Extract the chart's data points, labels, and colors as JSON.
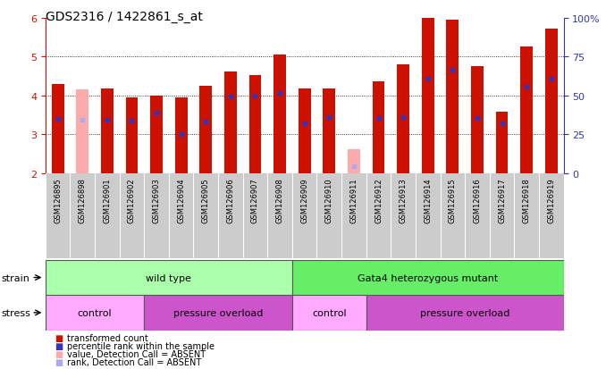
{
  "title": "GDS2316 / 1422861_s_at",
  "samples": [
    "GSM126895",
    "GSM126898",
    "GSM126901",
    "GSM126902",
    "GSM126903",
    "GSM126904",
    "GSM126905",
    "GSM126906",
    "GSM126907",
    "GSM126908",
    "GSM126909",
    "GSM126910",
    "GSM126911",
    "GSM126912",
    "GSM126913",
    "GSM126914",
    "GSM126915",
    "GSM126916",
    "GSM126917",
    "GSM126918",
    "GSM126919"
  ],
  "values": [
    4.3,
    4.15,
    4.18,
    3.95,
    4.0,
    3.95,
    4.25,
    4.62,
    4.52,
    5.05,
    4.18,
    4.18,
    2.6,
    4.35,
    4.8,
    6.0,
    5.95,
    4.75,
    3.58,
    5.25,
    5.72
  ],
  "pct_ranks": [
    3.4,
    3.38,
    3.38,
    3.35,
    3.55,
    3.0,
    3.32,
    3.98,
    4.0,
    4.05,
    3.28,
    3.45,
    2.18,
    3.42,
    3.45,
    4.42,
    4.65,
    3.42,
    3.28,
    4.22,
    4.42
  ],
  "absent": [
    false,
    true,
    false,
    false,
    false,
    false,
    false,
    false,
    false,
    false,
    false,
    false,
    true,
    false,
    false,
    false,
    false,
    false,
    false,
    false,
    false
  ],
  "base": 2.0,
  "ylim_left": [
    2,
    6
  ],
  "yticks_left": [
    2,
    3,
    4,
    5,
    6
  ],
  "ylim_right": [
    0,
    100
  ],
  "yticks_right": [
    0,
    25,
    50,
    75,
    100
  ],
  "grid_values": [
    3,
    4,
    5
  ],
  "bar_color": "#cc1100",
  "absent_bar_color": "#ffaaaa",
  "blue_color": "#3333bb",
  "absent_blue_color": "#aaaaee",
  "bar_width": 0.5,
  "strain_groups": [
    {
      "label": "wild type",
      "start": 0,
      "end": 9,
      "color": "#aaffaa"
    },
    {
      "label": "Gata4 heterozygous mutant",
      "start": 10,
      "end": 20,
      "color": "#66ee66"
    }
  ],
  "stress_groups": [
    {
      "label": "control",
      "start": 0,
      "end": 3,
      "type": "control"
    },
    {
      "label": "pressure overload",
      "start": 4,
      "end": 9,
      "type": "pressure"
    },
    {
      "label": "control",
      "start": 10,
      "end": 12,
      "type": "control"
    },
    {
      "label": "pressure overload",
      "start": 13,
      "end": 20,
      "type": "pressure"
    }
  ],
  "strain_color": "#aaffaa",
  "stress_control_color": "#ffaaff",
  "stress_pressure_color": "#cc55cc",
  "tick_color": "#cc1100",
  "right_axis_color": "#3333bb",
  "label_fontsize": 8,
  "tick_fontsize": 6,
  "title_fontsize": 10
}
